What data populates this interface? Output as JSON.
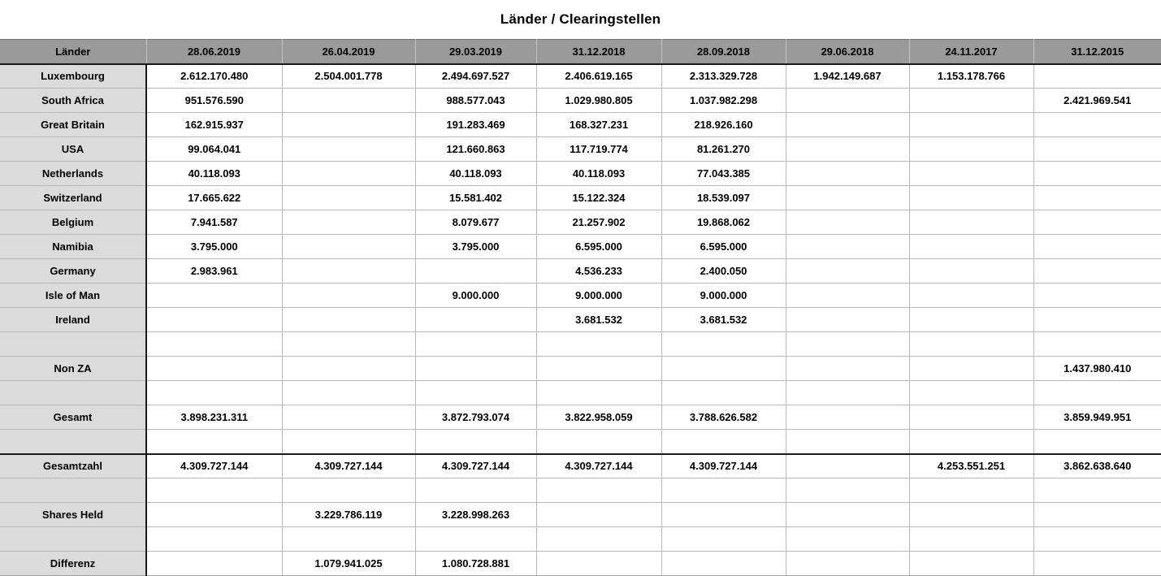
{
  "title": "Länder / Clearingstellen",
  "colors": {
    "header_bg": "#9a9a9a",
    "label_bg": "#dbdbdb",
    "grid": "#b7b7b7",
    "strong_border": "#1a1a1a"
  },
  "table": {
    "header": {
      "label": "Länder",
      "dates": [
        "28.06.2019",
        "26.04.2019",
        "29.03.2019",
        "31.12.2018",
        "28.09.2018",
        "29.06.2018",
        "24.11.2017",
        "31.12.2015"
      ]
    },
    "rows": [
      {
        "label": "Luxembourg",
        "values": [
          "2.612.170.480",
          "2.504.001.778",
          "2.494.697.527",
          "2.406.619.165",
          "2.313.329.728",
          "1.942.149.687",
          "1.153.178.766",
          ""
        ]
      },
      {
        "label": "South Africa",
        "values": [
          "951.576.590",
          "",
          "988.577.043",
          "1.029.980.805",
          "1.037.982.298",
          "",
          "",
          "2.421.969.541"
        ]
      },
      {
        "label": "Great Britain",
        "values": [
          "162.915.937",
          "",
          "191.283.469",
          "168.327.231",
          "218.926.160",
          "",
          "",
          ""
        ]
      },
      {
        "label": "USA",
        "values": [
          "99.064.041",
          "",
          "121.660.863",
          "117.719.774",
          "81.261.270",
          "",
          "",
          ""
        ]
      },
      {
        "label": "Netherlands",
        "values": [
          "40.118.093",
          "",
          "40.118.093",
          "40.118.093",
          "77.043.385",
          "",
          "",
          ""
        ]
      },
      {
        "label": "Switzerland",
        "values": [
          "17.665.622",
          "",
          "15.581.402",
          "15.122.324",
          "18.539.097",
          "",
          "",
          ""
        ]
      },
      {
        "label": "Belgium",
        "values": [
          "7.941.587",
          "",
          "8.079.677",
          "21.257.902",
          "19.868.062",
          "",
          "",
          ""
        ]
      },
      {
        "label": "Namibia",
        "values": [
          "3.795.000",
          "",
          "3.795.000",
          "6.595.000",
          "6.595.000",
          "",
          "",
          ""
        ]
      },
      {
        "label": "Germany",
        "values": [
          "2.983.961",
          "",
          "",
          "4.536.233",
          "2.400.050",
          "",
          "",
          ""
        ]
      },
      {
        "label": "Isle of Man",
        "values": [
          "",
          "",
          "9.000.000",
          "9.000.000",
          "9.000.000",
          "",
          "",
          ""
        ]
      },
      {
        "label": "Ireland",
        "values": [
          "",
          "",
          "",
          "3.681.532",
          "3.681.532",
          "",
          "",
          ""
        ]
      },
      {
        "label": "",
        "values": [
          "",
          "",
          "",
          "",
          "",
          "",
          "",
          ""
        ]
      },
      {
        "label": "Non ZA",
        "values": [
          "",
          "",
          "",
          "",
          "",
          "",
          "",
          "1.437.980.410"
        ]
      },
      {
        "label": "",
        "values": [
          "",
          "",
          "",
          "",
          "",
          "",
          "",
          ""
        ]
      },
      {
        "label": "Gesamt",
        "values": [
          "3.898.231.311",
          "",
          "3.872.793.074",
          "3.822.958.059",
          "3.788.626.582",
          "",
          "",
          "3.859.949.951"
        ]
      },
      {
        "label": "",
        "values": [
          "",
          "",
          "",
          "",
          "",
          "",
          "",
          ""
        ]
      },
      {
        "label": "Gesamtzahl",
        "values": [
          "4.309.727.144",
          "4.309.727.144",
          "4.309.727.144",
          "4.309.727.144",
          "4.309.727.144",
          "",
          "4.253.551.251",
          "3.862.638.640"
        ],
        "thick_top": true
      },
      {
        "label": "",
        "values": [
          "",
          "",
          "",
          "",
          "",
          "",
          "",
          ""
        ]
      },
      {
        "label": "Shares Held",
        "values": [
          "",
          "3.229.786.119",
          "3.228.998.263",
          "",
          "",
          "",
          "",
          ""
        ]
      },
      {
        "label": "",
        "values": [
          "",
          "",
          "",
          "",
          "",
          "",
          "",
          ""
        ]
      },
      {
        "label": "Differenz",
        "values": [
          "",
          "1.079.941.025",
          "1.080.728.881",
          "",
          "",
          "",
          "",
          ""
        ]
      }
    ]
  }
}
